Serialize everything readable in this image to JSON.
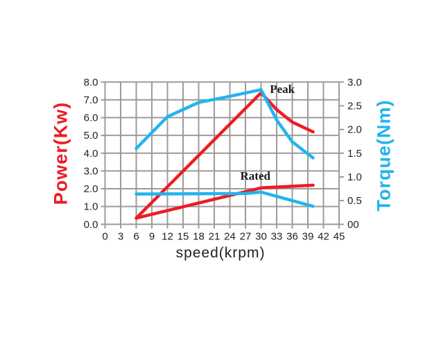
{
  "chart_data": {
    "type": "line",
    "title": "",
    "xlabel": "speed(krpm)",
    "ylabel_left": "Power(Kw)",
    "ylabel_right": "Torque(Nm)",
    "xlim": [
      0,
      45
    ],
    "ylim_left": [
      0,
      8
    ],
    "ylim_right": [
      0,
      3
    ],
    "grid": true,
    "legend_position": "none",
    "x_tick_values": [
      0,
      3,
      6,
      9,
      12,
      15,
      18,
      21,
      24,
      27,
      30,
      33,
      36,
      39,
      42,
      45
    ],
    "x_tick_labels": [
      "0",
      "3",
      "6",
      "9",
      "12",
      "15",
      "18",
      "21",
      "24",
      "27",
      "30",
      "33",
      "36",
      "39",
      "42",
      "45"
    ],
    "y_left_tick_values": [
      0,
      1,
      2,
      3,
      4,
      5,
      6,
      7,
      8
    ],
    "y_left_tick_labels": [
      "0.0",
      "1.0",
      "2.0",
      "3.0",
      "4.0",
      "5.0",
      "6.0",
      "7.0",
      "8.0"
    ],
    "y_right_tick_values": [
      0,
      0.5,
      1.0,
      1.5,
      2.0,
      2.5,
      3.0
    ],
    "y_right_tick_labels": [
      "00",
      "0.5",
      "1.0",
      "1.5",
      "2.0",
      "2.5",
      "3.0"
    ],
    "annotations": [
      {
        "text": "Peak",
        "x_krpm": 31.7,
        "y_kw": 7.6
      },
      {
        "text": "Rated",
        "x_krpm": 26.0,
        "y_kw": 2.7
      }
    ],
    "series": [
      {
        "name": "peak-power",
        "axis": "left",
        "color": "#ED1C24",
        "points": [
          [
            6,
            0.35
          ],
          [
            30,
            7.4
          ],
          [
            33,
            6.45
          ],
          [
            36,
            5.75
          ],
          [
            40,
            5.2
          ]
        ]
      },
      {
        "name": "rated-power",
        "axis": "left",
        "color": "#ED1C24",
        "points": [
          [
            6,
            0.35
          ],
          [
            30,
            2.05
          ],
          [
            40,
            2.2
          ]
        ]
      },
      {
        "name": "peak-torque",
        "axis": "right",
        "color": "#21B4EF",
        "points": [
          [
            6,
            1.6
          ],
          [
            12,
            2.27
          ],
          [
            18,
            2.57
          ],
          [
            24,
            2.7
          ],
          [
            30,
            2.84
          ],
          [
            33,
            2.2
          ],
          [
            36,
            1.74
          ],
          [
            40,
            1.4
          ]
        ]
      },
      {
        "name": "rated-torque",
        "axis": "right",
        "color": "#21B4EF",
        "points": [
          [
            6,
            0.64
          ],
          [
            27,
            0.65
          ],
          [
            30,
            0.68
          ],
          [
            40,
            0.38
          ]
        ]
      }
    ],
    "colors": {
      "power_axis": "#ED1C24",
      "torque_axis": "#21B4EF",
      "grid": "#9B9B9B",
      "tick_text": "#1F1F1F"
    }
  }
}
